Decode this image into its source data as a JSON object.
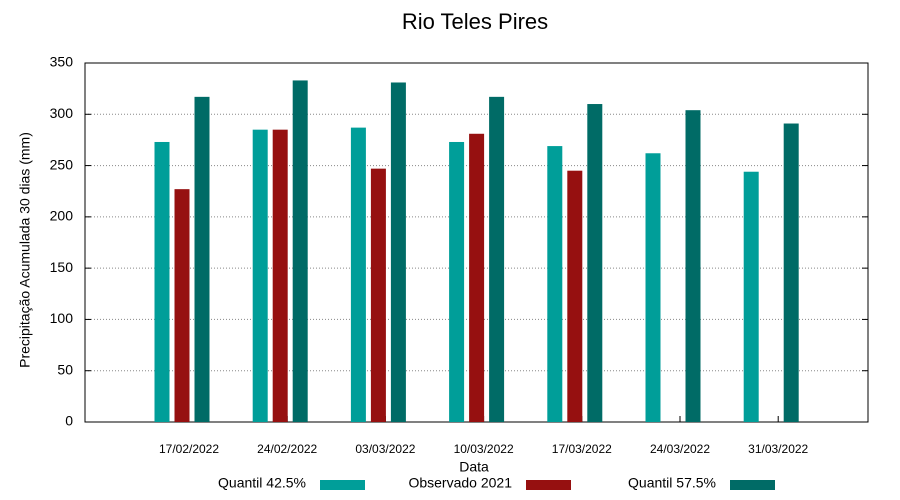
{
  "chart_data": {
    "type": "bar",
    "title": "Rio Teles Pires",
    "x_label": "Data",
    "y_label": "Precipitação Acumulada 30 dias (mm)",
    "categories": [
      "17/02/2022",
      "24/02/2022",
      "03/03/2022",
      "10/03/2022",
      "17/03/2022",
      "24/03/2022",
      "31/03/2022"
    ],
    "series": [
      {
        "name": "Quantil 42.5%",
        "color": "#009e99",
        "values": [
          273,
          285,
          287,
          273,
          269,
          262,
          244
        ]
      },
      {
        "name": "Observado 2021",
        "color": "#961010",
        "values": [
          227,
          285,
          247,
          281,
          245,
          null,
          null
        ]
      },
      {
        "name": "Quantil 57.5%",
        "color": "#006b66",
        "values": [
          317,
          333,
          331,
          317,
          310,
          304,
          291
        ]
      }
    ],
    "ylim": [
      0,
      350
    ],
    "yticks": [
      0,
      50,
      100,
      150,
      200,
      250,
      300,
      350
    ],
    "grid": true,
    "legend": "bottom"
  }
}
